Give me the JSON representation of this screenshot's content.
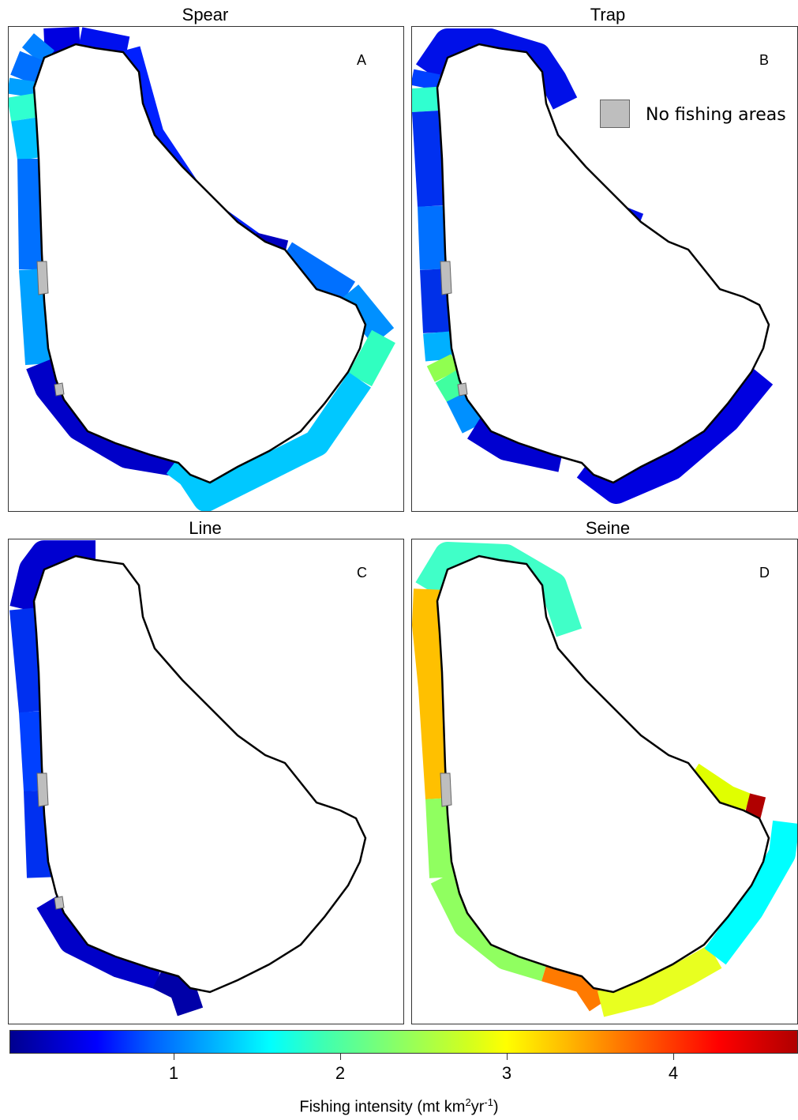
{
  "panels": [
    {
      "title": "Spear",
      "letter": "A"
    },
    {
      "title": "Trap",
      "letter": "B"
    },
    {
      "title": "Line",
      "letter": "C"
    },
    {
      "title": "Seine",
      "letter": "D"
    }
  ],
  "legend": {
    "label": "No fishing areas",
    "color": "#bebebe"
  },
  "colorbar": {
    "ticks": [
      "1",
      "2",
      "3",
      "4"
    ],
    "title_main": "Fishing intensity (mt km",
    "sup1": "2",
    "title_mid": "yr",
    "sup2": "-1",
    "title_end": ")"
  }
}
